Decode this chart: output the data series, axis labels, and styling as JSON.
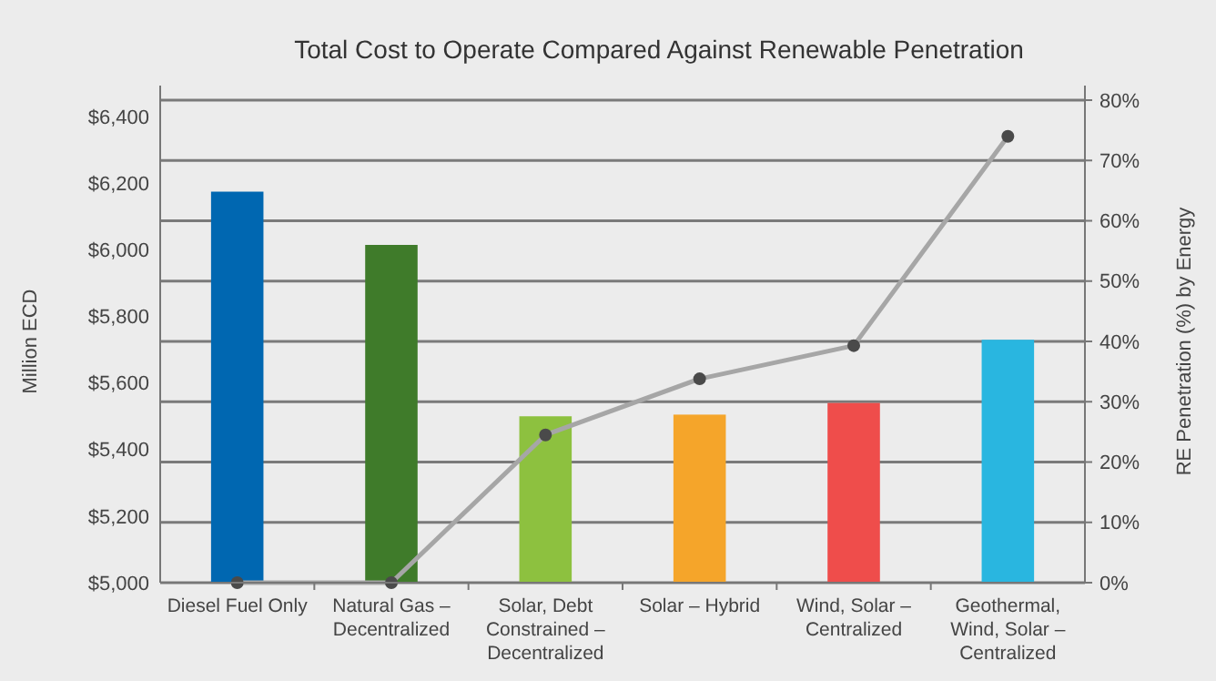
{
  "chart_data": {
    "type": "bar",
    "title": "Total Cost to Operate Compared Against Renewable Penetration",
    "ylabel": "Million ECD",
    "y2label": "RE Penetration (%) by Energy",
    "categories": [
      "Diesel Fuel Only",
      "Natural Gas – Decentralized",
      "Solar, Debt Constrained – Decentralized",
      "Solar – Hybrid",
      "Wind, Solar – Centralized",
      "Geothermal, Wind, Solar – Centralized"
    ],
    "series": [
      {
        "colors": [
          "#0067b1",
          "#3f7b2a",
          "#8dc13f",
          "#f5a52a",
          "#ef4d4b",
          "#29b6e0"
        ],
        "values": [
          6175,
          6015,
          5500,
          5505,
          5540,
          5730
        ]
      },
      {
        "type": "line",
        "axis": "y2",
        "color": "#a6a6a6",
        "values": [
          0,
          0,
          24.5,
          33.8,
          39.3,
          74
        ]
      }
    ],
    "ylim": [
      5000,
      6450
    ],
    "yticks": [
      {
        "value": 5000,
        "label": "$5,000"
      },
      {
        "value": 5200,
        "label": "$5,200"
      },
      {
        "value": 5400,
        "label": "$5,400"
      },
      {
        "value": 5600,
        "label": "$5,600"
      },
      {
        "value": 5800,
        "label": "$5,800"
      },
      {
        "value": 6000,
        "label": "$6,000"
      },
      {
        "value": 6200,
        "label": "$6,200"
      },
      {
        "value": 6400,
        "label": "$6,400"
      }
    ],
    "y2lim": [
      0,
      80
    ],
    "y2ticks": [
      {
        "value": 0,
        "label": "0%"
      },
      {
        "value": 10,
        "label": "10%"
      },
      {
        "value": 20,
        "label": "20%"
      },
      {
        "value": 30,
        "label": "30%"
      },
      {
        "value": 40,
        "label": "40%"
      },
      {
        "value": 50,
        "label": "50%"
      },
      {
        "value": 60,
        "label": "60%"
      },
      {
        "value": 70,
        "label": "70%"
      },
      {
        "value": 80,
        "label": "80%"
      }
    ],
    "grid": "y2",
    "marker": "circle",
    "line_style": "solid"
  }
}
